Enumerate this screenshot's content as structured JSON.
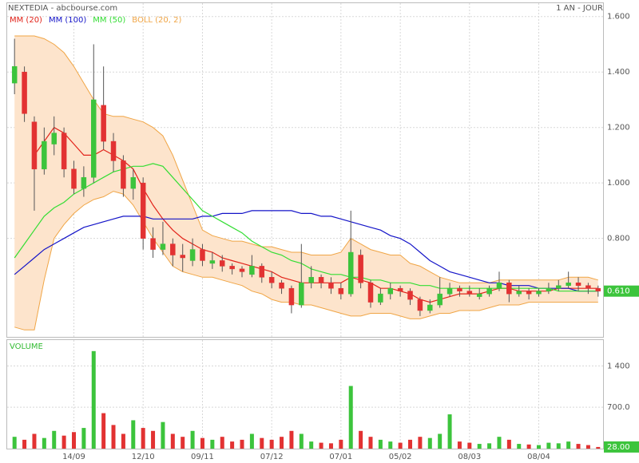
{
  "chart_data": {
    "type": "candlestick",
    "title": "NEXTEDIA - abcbourse.com",
    "period": "1 AN - JOUR",
    "volume_title": "VOLUME",
    "categories": [
      null,
      null,
      null,
      null,
      null,
      null,
      "14/09",
      null,
      null,
      null,
      null,
      null,
      null,
      "12/10",
      null,
      null,
      null,
      null,
      null,
      "09/11",
      null,
      null,
      null,
      null,
      null,
      null,
      "07/12",
      null,
      null,
      null,
      null,
      null,
      null,
      "07/01",
      null,
      null,
      null,
      null,
      null,
      "05/02",
      null,
      null,
      null,
      null,
      null,
      null,
      "08/03",
      null,
      null,
      null,
      null,
      null,
      null,
      "08/04",
      null,
      null,
      null,
      null,
      null,
      null
    ],
    "open": [
      1.36,
      1.4,
      1.22,
      1.05,
      1.14,
      1.18,
      1.05,
      0.98,
      1.02,
      1.28,
      1.15,
      1.08,
      0.98,
      1.0,
      0.8,
      0.76,
      0.78,
      0.74,
      0.72,
      0.76,
      0.71,
      0.72,
      0.7,
      0.69,
      0.67,
      0.7,
      0.66,
      0.64,
      0.62,
      0.56,
      0.64,
      0.66,
      0.64,
      0.62,
      0.6,
      0.74,
      0.64,
      0.57,
      0.6,
      0.62,
      0.61,
      0.58,
      0.54,
      0.56,
      0.6,
      0.62,
      0.61,
      0.59,
      0.6,
      0.62,
      0.64,
      0.6,
      0.61,
      0.6,
      0.61,
      0.62,
      0.63,
      0.64,
      0.63,
      0.62
    ],
    "high": [
      1.52,
      1.42,
      1.24,
      1.2,
      1.24,
      1.2,
      1.08,
      1.06,
      1.5,
      1.42,
      1.18,
      1.1,
      1.05,
      1.02,
      0.84,
      0.86,
      0.8,
      0.78,
      0.8,
      0.78,
      0.75,
      0.74,
      0.71,
      0.7,
      0.74,
      0.71,
      0.68,
      0.65,
      0.63,
      0.78,
      0.7,
      0.67,
      0.66,
      0.64,
      0.9,
      0.76,
      0.65,
      0.62,
      0.64,
      0.63,
      0.62,
      0.59,
      0.58,
      0.66,
      0.64,
      0.63,
      0.63,
      0.62,
      0.63,
      0.68,
      0.65,
      0.63,
      0.62,
      0.62,
      0.64,
      0.65,
      0.68,
      0.66,
      0.64,
      0.63
    ],
    "low": [
      1.32,
      1.22,
      0.9,
      1.03,
      1.1,
      1.02,
      0.96,
      0.95,
      1.0,
      1.12,
      1.04,
      0.95,
      0.94,
      0.76,
      0.73,
      0.74,
      0.7,
      0.68,
      0.7,
      0.7,
      0.69,
      0.68,
      0.67,
      0.66,
      0.66,
      0.64,
      0.62,
      0.6,
      0.53,
      0.55,
      0.62,
      0.62,
      0.6,
      0.58,
      0.59,
      0.62,
      0.55,
      0.56,
      0.58,
      0.59,
      0.56,
      0.52,
      0.53,
      0.55,
      0.59,
      0.59,
      0.59,
      0.58,
      0.59,
      0.61,
      0.57,
      0.59,
      0.58,
      0.59,
      0.6,
      0.61,
      0.62,
      0.61,
      0.6,
      0.59
    ],
    "close": [
      1.42,
      1.25,
      1.05,
      1.15,
      1.18,
      1.05,
      0.98,
      1.02,
      1.3,
      1.15,
      1.08,
      0.98,
      1.02,
      0.8,
      0.76,
      0.78,
      0.74,
      0.73,
      0.76,
      0.72,
      0.72,
      0.7,
      0.69,
      0.68,
      0.7,
      0.66,
      0.64,
      0.62,
      0.56,
      0.64,
      0.66,
      0.64,
      0.62,
      0.6,
      0.75,
      0.64,
      0.57,
      0.6,
      0.62,
      0.61,
      0.58,
      0.54,
      0.56,
      0.6,
      0.62,
      0.61,
      0.6,
      0.6,
      0.62,
      0.64,
      0.6,
      0.61,
      0.6,
      0.61,
      0.62,
      0.63,
      0.64,
      0.63,
      0.62,
      0.61
    ],
    "volume": [
      200,
      150,
      250,
      180,
      300,
      220,
      280,
      350,
      1650,
      600,
      400,
      250,
      480,
      350,
      300,
      450,
      250,
      200,
      300,
      180,
      150,
      200,
      120,
      150,
      250,
      180,
      150,
      200,
      300,
      250,
      120,
      100,
      90,
      150,
      1060,
      300,
      200,
      150,
      120,
      100,
      150,
      200,
      180,
      250,
      580,
      120,
      100,
      80,
      90,
      200,
      150,
      80,
      70,
      60,
      100,
      90,
      120,
      80,
      60,
      28
    ],
    "up_color": "#3cc43c",
    "down_color": "#e23232",
    "series": [
      {
        "name": "MM (20)",
        "color": "#e2231a",
        "values": [
          null,
          null,
          1.1,
          1.15,
          1.2,
          1.18,
          1.14,
          1.1,
          1.1,
          1.12,
          1.1,
          1.08,
          1.05,
          0.98,
          0.92,
          0.87,
          0.83,
          0.8,
          0.78,
          0.76,
          0.75,
          0.73,
          0.72,
          0.71,
          0.7,
          0.69,
          0.68,
          0.66,
          0.65,
          0.64,
          0.64,
          0.64,
          0.64,
          0.64,
          0.66,
          0.65,
          0.64,
          0.62,
          0.62,
          0.61,
          0.6,
          0.58,
          0.57,
          0.58,
          0.59,
          0.6,
          0.6,
          0.6,
          0.61,
          0.62,
          0.62,
          0.61,
          0.61,
          0.61,
          0.61,
          0.62,
          0.62,
          0.62,
          0.62,
          0.62
        ]
      },
      {
        "name": "MM (100)",
        "color": "#1414c8",
        "values": [
          0.67,
          0.7,
          0.73,
          0.76,
          0.78,
          0.8,
          0.82,
          0.84,
          0.85,
          0.86,
          0.87,
          0.88,
          0.88,
          0.88,
          0.87,
          0.87,
          0.87,
          0.87,
          0.87,
          0.88,
          0.88,
          0.89,
          0.89,
          0.89,
          0.9,
          0.9,
          0.9,
          0.9,
          0.9,
          0.89,
          0.89,
          0.88,
          0.88,
          0.87,
          0.86,
          0.85,
          0.84,
          0.83,
          0.81,
          0.8,
          0.78,
          0.75,
          0.72,
          0.7,
          0.68,
          0.67,
          0.66,
          0.65,
          0.64,
          0.64,
          0.63,
          0.63,
          0.63,
          0.62,
          0.62,
          0.62,
          0.62,
          0.61,
          0.61,
          0.61
        ]
      },
      {
        "name": "MM (50)",
        "color": "#33dd33",
        "values": [
          0.73,
          0.78,
          0.83,
          0.88,
          0.91,
          0.93,
          0.96,
          0.98,
          1.0,
          1.02,
          1.04,
          1.05,
          1.06,
          1.06,
          1.07,
          1.06,
          1.02,
          0.98,
          0.94,
          0.9,
          0.88,
          0.86,
          0.84,
          0.82,
          0.79,
          0.77,
          0.75,
          0.74,
          0.72,
          0.71,
          0.69,
          0.68,
          0.67,
          0.67,
          0.66,
          0.66,
          0.65,
          0.65,
          0.64,
          0.64,
          0.64,
          0.63,
          0.63,
          0.62,
          0.62,
          0.62,
          0.62,
          0.62,
          0.62,
          0.62,
          0.62,
          0.62,
          0.62,
          0.62,
          0.62,
          0.61,
          0.61,
          0.61,
          0.61,
          0.61
        ]
      }
    ],
    "bollinger": {
      "name": "BOLL (20, 2)",
      "color": "#f0a545",
      "fill": "#fde4cc",
      "upper": [
        1.53,
        1.53,
        1.53,
        1.52,
        1.5,
        1.47,
        1.42,
        1.36,
        1.3,
        1.25,
        1.24,
        1.24,
        1.23,
        1.22,
        1.2,
        1.17,
        1.1,
        1.01,
        0.92,
        0.83,
        0.81,
        0.8,
        0.79,
        0.79,
        0.78,
        0.77,
        0.77,
        0.76,
        0.75,
        0.75,
        0.74,
        0.74,
        0.74,
        0.75,
        0.8,
        0.78,
        0.76,
        0.75,
        0.74,
        0.74,
        0.71,
        0.7,
        0.68,
        0.66,
        0.65,
        0.64,
        0.64,
        0.64,
        0.64,
        0.65,
        0.65,
        0.65,
        0.65,
        0.65,
        0.65,
        0.65,
        0.66,
        0.66,
        0.66,
        0.65
      ],
      "lower": [
        0.48,
        0.47,
        0.47,
        0.65,
        0.8,
        0.85,
        0.89,
        0.92,
        0.94,
        0.95,
        0.97,
        0.96,
        0.92,
        0.86,
        0.8,
        0.75,
        0.7,
        0.68,
        0.67,
        0.66,
        0.66,
        0.65,
        0.64,
        0.63,
        0.61,
        0.6,
        0.58,
        0.57,
        0.57,
        0.56,
        0.56,
        0.55,
        0.54,
        0.53,
        0.52,
        0.52,
        0.53,
        0.53,
        0.53,
        0.52,
        0.51,
        0.51,
        0.52,
        0.53,
        0.53,
        0.54,
        0.54,
        0.54,
        0.55,
        0.56,
        0.56,
        0.56,
        0.57,
        0.57,
        0.57,
        0.57,
        0.57,
        0.57,
        0.57,
        0.57
      ]
    },
    "ylim": [
      0.445,
      1.651
    ],
    "yticks": [
      {
        "value": 0.8,
        "label": "0.800"
      },
      {
        "value": 1.0,
        "label": "1.000"
      },
      {
        "value": 1.2,
        "label": "1.200"
      },
      {
        "value": 1.4,
        "label": "1.400"
      },
      {
        "value": 1.6,
        "label": "1.600"
      }
    ],
    "last_price": {
      "value": 0.61,
      "label": "0.610"
    },
    "y2lim": [
      0,
      1850
    ],
    "y2ticks": [
      {
        "value": 700,
        "label": "700.0"
      },
      {
        "value": 1400,
        "label": "1 400"
      }
    ],
    "last_volume": {
      "value": 28,
      "label": "28.00"
    },
    "grid": true
  }
}
